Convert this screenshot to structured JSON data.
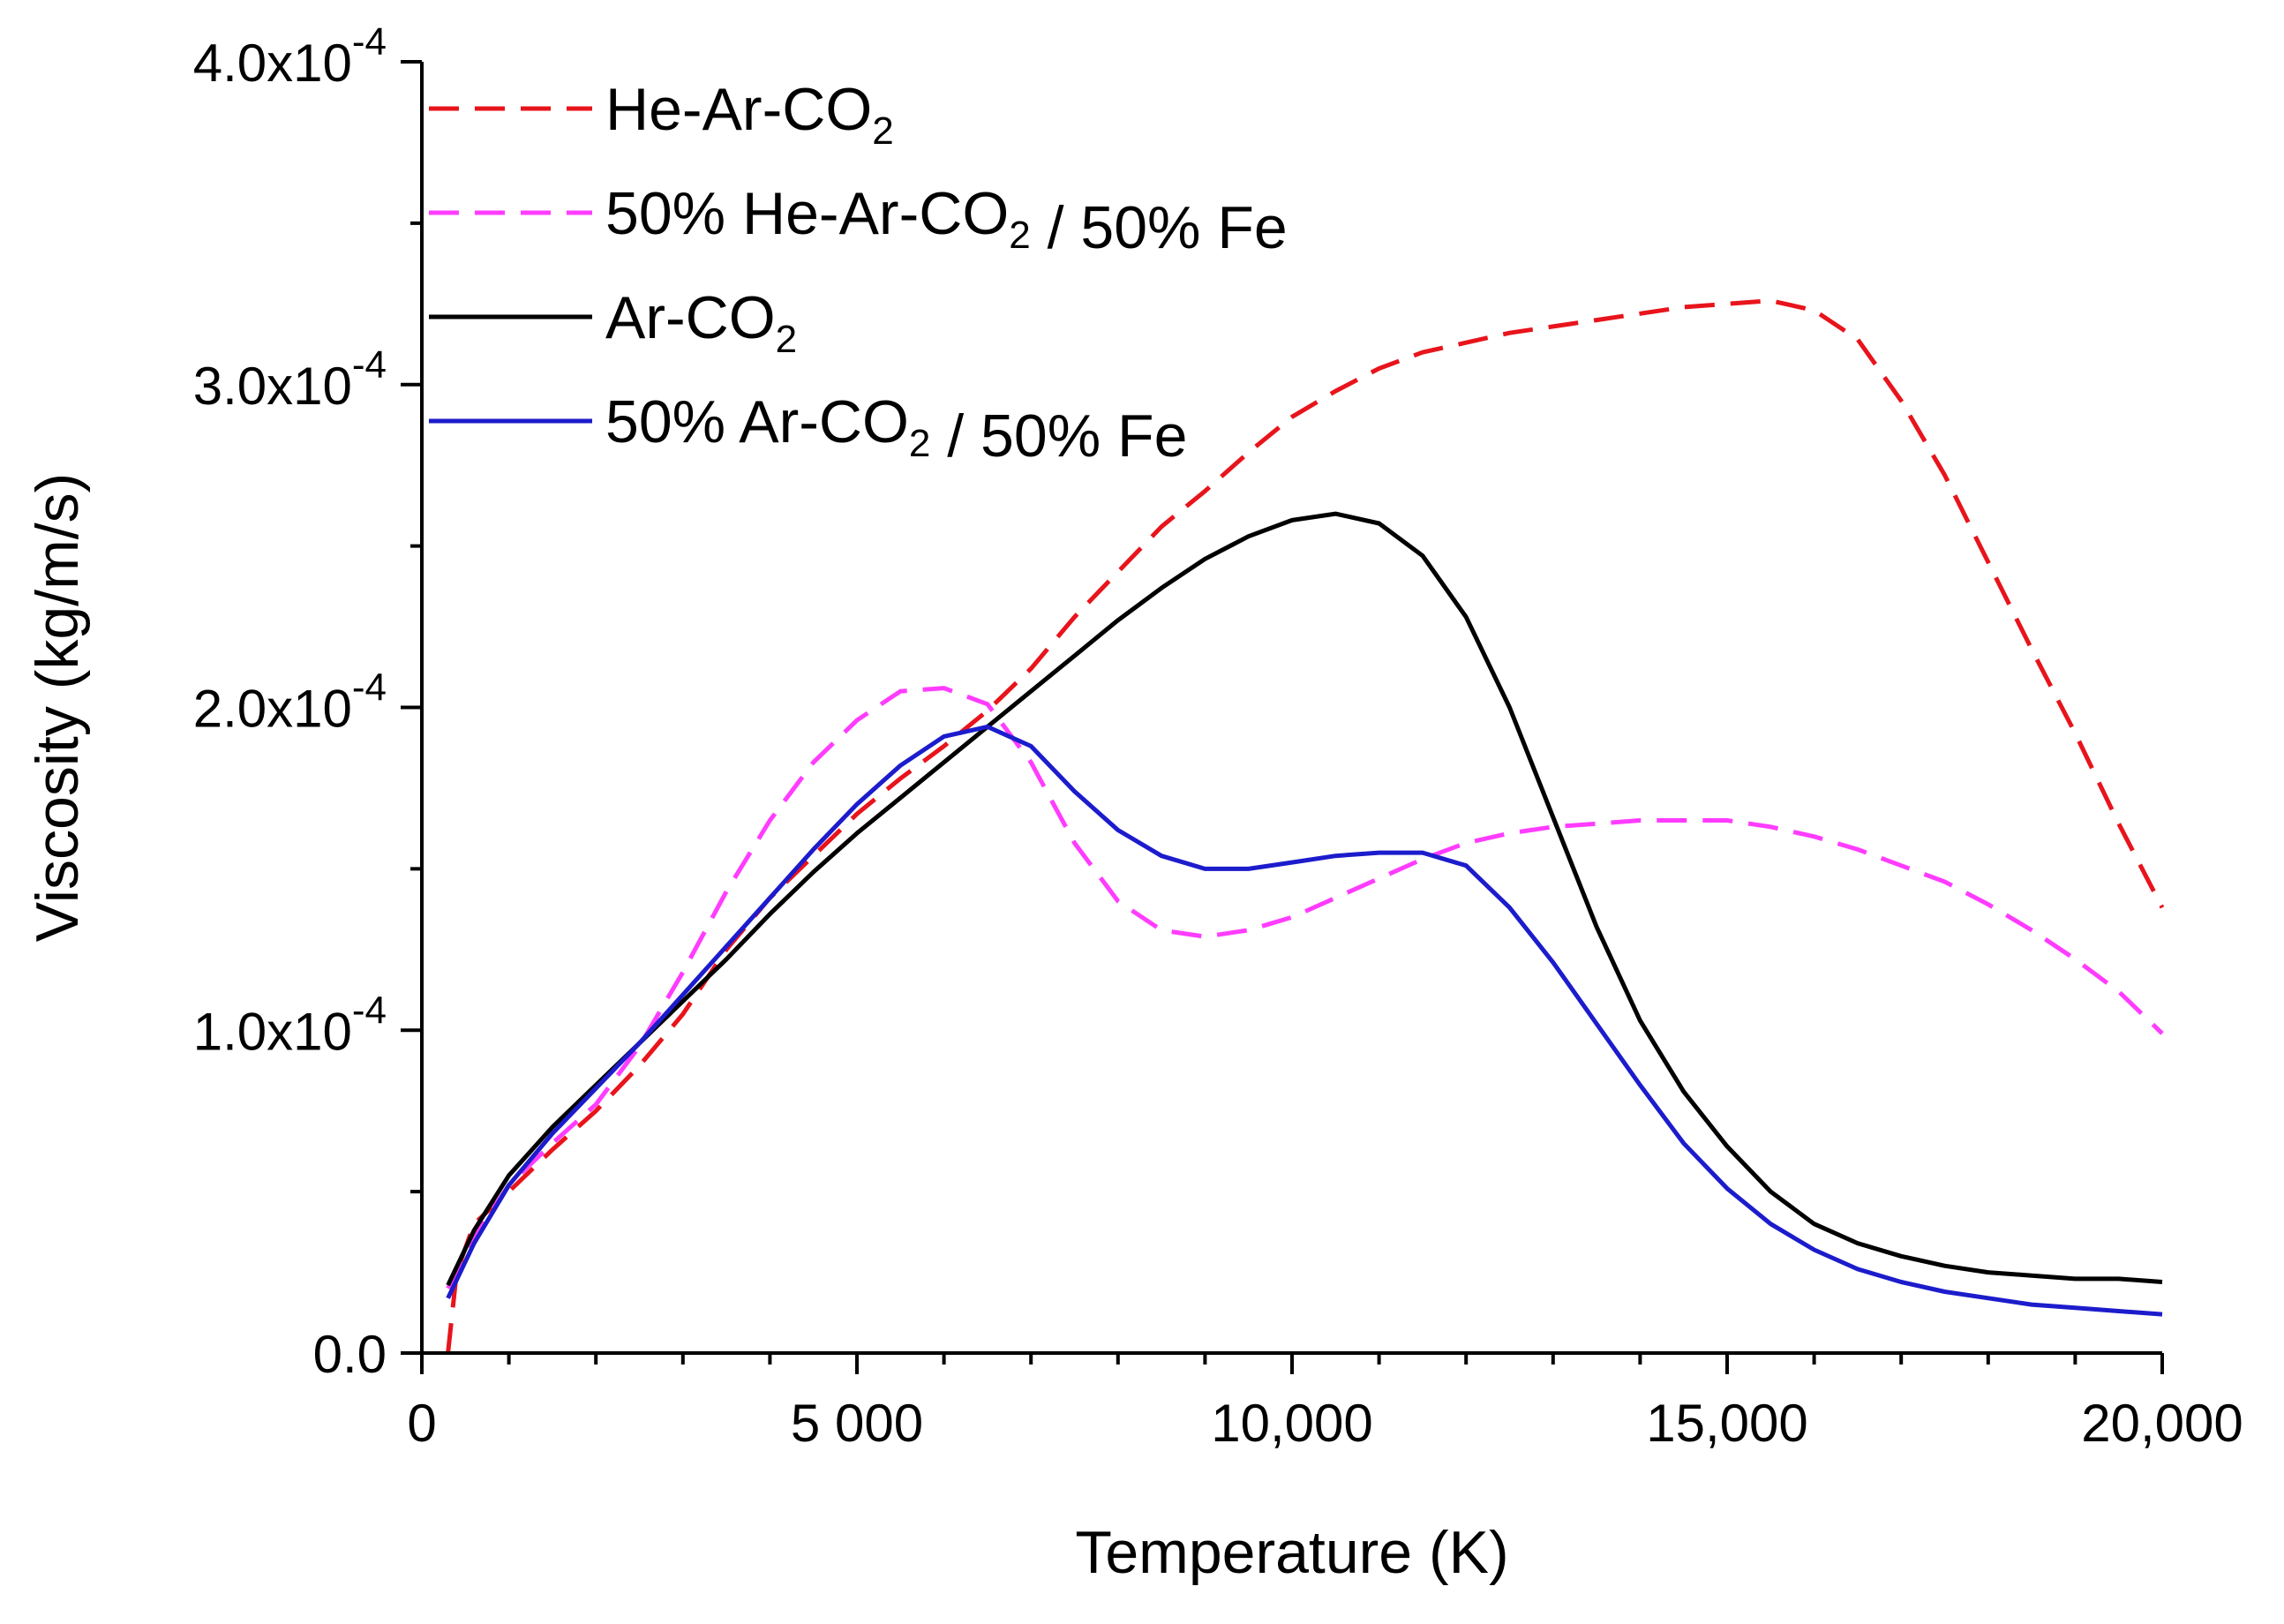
{
  "chart_data": {
    "type": "line",
    "title": "",
    "xlabel": "Temperature (K)",
    "ylabel": "Viscosity (kg/m/s)",
    "xlim": [
      0,
      20000
    ],
    "ylim": [
      0,
      0.0004
    ],
    "x_ticks": [
      {
        "value": 0,
        "label": "0"
      },
      {
        "value": 5000,
        "label": "5 000"
      },
      {
        "value": 10000,
        "label": "10,000"
      },
      {
        "value": 15000,
        "label": "15,000"
      },
      {
        "value": 20000,
        "label": "20,000"
      }
    ],
    "y_ticks": [
      {
        "value": 0,
        "mantissa": "0.0",
        "exponent": ""
      },
      {
        "value": 0.0001,
        "mantissa": "1.0x10",
        "exponent": "-4"
      },
      {
        "value": 0.0002,
        "mantissa": "2.0x10",
        "exponent": "-4"
      },
      {
        "value": 0.0003,
        "mantissa": "3.0x10",
        "exponent": "-4"
      },
      {
        "value": 0.0004,
        "mantissa": "4.0x10",
        "exponent": "-4"
      }
    ],
    "grid": false,
    "legend_position": "top-left",
    "series": [
      {
        "name": "He-Ar-CO2",
        "label_parts": [
          {
            "t": "He-Ar-CO"
          },
          {
            "t": "2",
            "sub": true
          }
        ],
        "color": "#e8141c",
        "dash": "dashed",
        "x": [
          300,
          400,
          600,
          1000,
          1500,
          2000,
          2500,
          3000,
          3500,
          4000,
          4500,
          5000,
          5500,
          6000,
          6500,
          7000,
          7500,
          8000,
          8500,
          9000,
          9500,
          10000,
          10500,
          11000,
          11500,
          12000,
          12500,
          13000,
          13500,
          14000,
          14500,
          15000,
          15500,
          16000,
          16500,
          17000,
          17500,
          18000,
          18500,
          19000,
          19500,
          20000
        ],
        "y": [
          0.0,
          2.5e-05,
          4e-05,
          5e-05,
          6.3e-05,
          7.5e-05,
          8.9e-05,
          0.000105,
          0.000125,
          0.000141,
          0.000154,
          0.000167,
          0.000178,
          0.000188,
          0.000199,
          0.000212,
          0.000228,
          0.000242,
          0.000256,
          0.000267,
          0.000279,
          0.00029,
          0.000298,
          0.000305,
          0.00031,
          0.000313,
          0.000316,
          0.000318,
          0.00032,
          0.000322,
          0.000324,
          0.000325,
          0.000326,
          0.000323,
          0.000314,
          0.000295,
          0.000272,
          0.000245,
          0.000218,
          0.000192,
          0.000164,
          0.000138
        ]
      },
      {
        "name": "50% He-Ar-CO2 / 50% Fe",
        "label_parts": [
          {
            "t": "50% He-Ar-CO"
          },
          {
            "t": "2",
            "sub": true
          },
          {
            "t": " / 50% Fe"
          }
        ],
        "color": "#ff3cff",
        "dash": "dashed",
        "x": [
          300,
          600,
          1000,
          1500,
          2000,
          2500,
          3000,
          3500,
          4000,
          4500,
          5000,
          5500,
          6000,
          6500,
          7000,
          7500,
          8000,
          8500,
          9000,
          9500,
          10000,
          10500,
          11000,
          11500,
          12000,
          12500,
          13000,
          13500,
          14000,
          14500,
          15000,
          15500,
          16000,
          16500,
          17000,
          17500,
          18000,
          18500,
          19000,
          19500,
          20000
        ],
        "y": [
          2e-05,
          3.6e-05,
          5.2e-05,
          6.5e-05,
          7.7e-05,
          9.5e-05,
          0.000118,
          0.000143,
          0.000165,
          0.000183,
          0.000196,
          0.000205,
          0.000206,
          0.000201,
          0.000183,
          0.000158,
          0.00014,
          0.000131,
          0.000129,
          0.000131,
          0.000135,
          0.000141,
          0.000147,
          0.000153,
          0.000158,
          0.000161,
          0.000163,
          0.000164,
          0.000165,
          0.000165,
          0.000165,
          0.000163,
          0.00016,
          0.000156,
          0.000151,
          0.000146,
          0.000139,
          0.000131,
          0.000122,
          0.000112,
          9.9e-05
        ]
      },
      {
        "name": "Ar-CO2",
        "label_parts": [
          {
            "t": "Ar-CO"
          },
          {
            "t": "2",
            "sub": true
          }
        ],
        "color": "#000000",
        "dash": "solid",
        "x": [
          300,
          600,
          1000,
          1500,
          2000,
          2500,
          3000,
          3500,
          4000,
          4500,
          5000,
          5500,
          6000,
          6500,
          7000,
          7500,
          8000,
          8500,
          9000,
          9500,
          10000,
          10500,
          11000,
          11500,
          12000,
          12500,
          13000,
          13500,
          14000,
          14500,
          15000,
          15500,
          16000,
          16500,
          17000,
          17500,
          18000,
          18500,
          19000,
          19500,
          20000
        ],
        "y": [
          2.1e-05,
          3.8e-05,
          5.5e-05,
          7e-05,
          8.3e-05,
          9.6e-05,
          0.000109,
          0.000122,
          0.000136,
          0.000149,
          0.000161,
          0.000172,
          0.000183,
          0.000194,
          0.000205,
          0.000216,
          0.000227,
          0.000237,
          0.000246,
          0.000253,
          0.000258,
          0.00026,
          0.000257,
          0.000247,
          0.000228,
          0.0002,
          0.000166,
          0.000132,
          0.000103,
          8.1e-05,
          6.4e-05,
          5e-05,
          4e-05,
          3.4e-05,
          3e-05,
          2.7e-05,
          2.5e-05,
          2.4e-05,
          2.3e-05,
          2.3e-05,
          2.2e-05
        ]
      },
      {
        "name": "50% Ar-CO2 / 50% Fe",
        "label_parts": [
          {
            "t": "50% Ar-CO"
          },
          {
            "t": "2",
            "sub": true
          },
          {
            "t": " / 50% Fe"
          }
        ],
        "color": "#1c1ccc",
        "dash": "solid",
        "x": [
          300,
          600,
          1000,
          1500,
          2000,
          2500,
          3000,
          3500,
          4000,
          4500,
          5000,
          5500,
          6000,
          6500,
          7000,
          7500,
          8000,
          8500,
          9000,
          9500,
          10000,
          10500,
          11000,
          11500,
          12000,
          12500,
          13000,
          13500,
          14000,
          14500,
          15000,
          15500,
          16000,
          16500,
          17000,
          17500,
          18000,
          18500,
          19000,
          19500,
          20000
        ],
        "y": [
          1.7e-05,
          3.4e-05,
          5.2e-05,
          6.8e-05,
          8.2e-05,
          9.6e-05,
          0.000111,
          0.000126,
          0.000141,
          0.000156,
          0.00017,
          0.000182,
          0.000191,
          0.000194,
          0.000188,
          0.000174,
          0.000162,
          0.000154,
          0.00015,
          0.00015,
          0.000152,
          0.000154,
          0.000155,
          0.000155,
          0.000151,
          0.000138,
          0.000121,
          0.000102,
          8.3e-05,
          6.5e-05,
          5.1e-05,
          4e-05,
          3.2e-05,
          2.6e-05,
          2.2e-05,
          1.9e-05,
          1.7e-05,
          1.5e-05,
          1.4e-05,
          1.3e-05,
          1.2e-05
        ]
      }
    ]
  }
}
